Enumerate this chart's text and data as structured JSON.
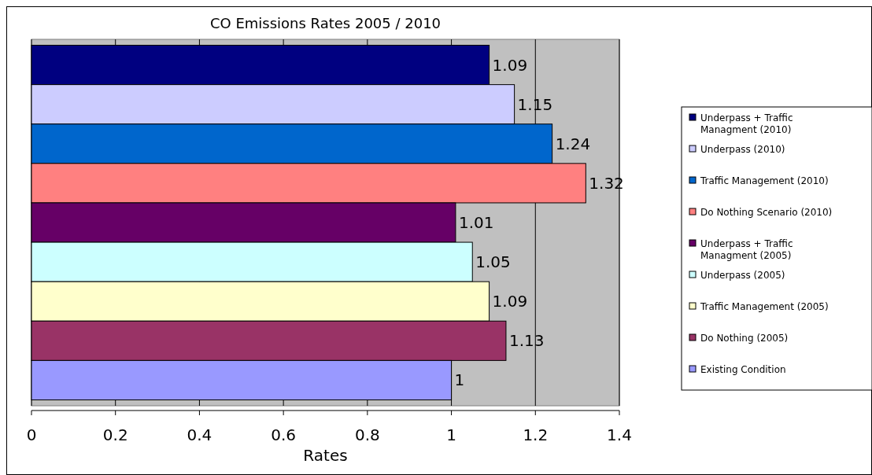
{
  "chart_data": {
    "type": "bar",
    "orientation": "horizontal",
    "title": "CO Emissions Rates 2005 / 2010",
    "xlabel": "Rates",
    "categories": [
      null,
      null,
      null,
      null,
      null,
      null,
      null,
      null,
      null
    ],
    "series": [
      {
        "name": "Underpass + Traffic Managment (2010)",
        "color": "#000080",
        "values": [
          1.09,
          null,
          null,
          null,
          null,
          null,
          null,
          null,
          null
        ]
      },
      {
        "name": "Underpass (2010)",
        "color": "#ccccff",
        "values": [
          null,
          1.15,
          null,
          null,
          null,
          null,
          null,
          null,
          null
        ]
      },
      {
        "name": "Traffic Management (2010)",
        "color": "#0066cc",
        "values": [
          null,
          null,
          1.24,
          null,
          null,
          null,
          null,
          null,
          null
        ]
      },
      {
        "name": "Do Nothing Scenario (2010)",
        "color": "#ff8080",
        "values": [
          null,
          null,
          null,
          1.32,
          null,
          null,
          null,
          null,
          null
        ]
      },
      {
        "name": "Underpass + Traffic Managment (2005)",
        "color": "#660066",
        "values": [
          null,
          null,
          null,
          null,
          1.01,
          null,
          null,
          null,
          null
        ]
      },
      {
        "name": "Underpass (2005)",
        "color": "#ccffff",
        "values": [
          null,
          null,
          null,
          null,
          null,
          1.05,
          null,
          null,
          null
        ]
      },
      {
        "name": "Traffic Management (2005)",
        "color": "#ffffcc",
        "values": [
          null,
          null,
          null,
          null,
          null,
          null,
          1.09,
          null,
          null
        ]
      },
      {
        "name": "Do Nothing (2005)",
        "color": "#993366",
        "values": [
          null,
          null,
          null,
          null,
          null,
          null,
          null,
          1.13,
          null
        ]
      },
      {
        "name": "Existing Condition",
        "color": "#9999ff",
        "values": [
          null,
          null,
          null,
          null,
          null,
          null,
          null,
          null,
          1
        ]
      }
    ],
    "xlim": [
      0,
      1.4
    ],
    "xticks": [
      0,
      0.2,
      0.4,
      0.6,
      0.8,
      1,
      1.2,
      1.4
    ],
    "grid": "x",
    "data_labels": true,
    "legend": "right"
  }
}
